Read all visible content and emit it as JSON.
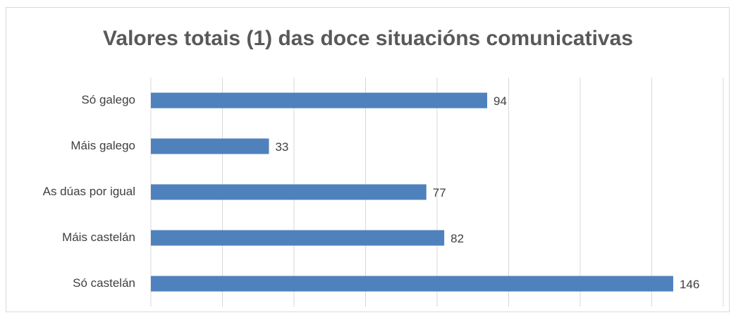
{
  "chart_data": {
    "type": "bar",
    "orientation": "horizontal",
    "title": "Valores totais (1) das doce situacións comunicativas",
    "categories": [
      "Só galego",
      "Máis galego",
      "As dúas por igual",
      "Máis castelán",
      "Só castelán"
    ],
    "values": [
      94,
      33,
      77,
      82,
      146
    ],
    "color": "#4f81bd",
    "xlim": [
      0,
      160
    ],
    "xticks": [
      0,
      20,
      40,
      60,
      80,
      100,
      120,
      140,
      160
    ],
    "grid": true
  }
}
